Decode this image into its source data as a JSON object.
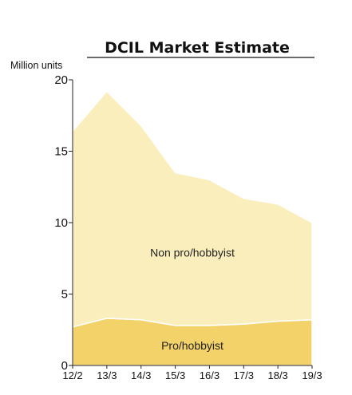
{
  "chart_data": {
    "type": "area",
    "stacked": true,
    "title": "DCIL Market Estimate",
    "ylabel": "Million units",
    "xlabel": "",
    "ylim": [
      0,
      20
    ],
    "yticks": [
      0,
      5,
      10,
      15,
      20
    ],
    "categories": [
      "12/2",
      "13/3",
      "14/3",
      "15/3",
      "16/3",
      "17/3",
      "18/3",
      "19/3"
    ],
    "series": [
      {
        "name": "Pro/hobbyist",
        "values": [
          2.7,
          3.3,
          3.2,
          2.8,
          2.8,
          2.9,
          3.1,
          3.2
        ],
        "color": "#f3d26a"
      },
      {
        "name": "Non pro/hobbyist",
        "values": [
          13.7,
          15.9,
          13.6,
          10.7,
          10.2,
          8.8,
          8.2,
          6.8
        ],
        "color": "#fbeebd"
      }
    ],
    "grid": false,
    "legend": "labels inside areas"
  }
}
